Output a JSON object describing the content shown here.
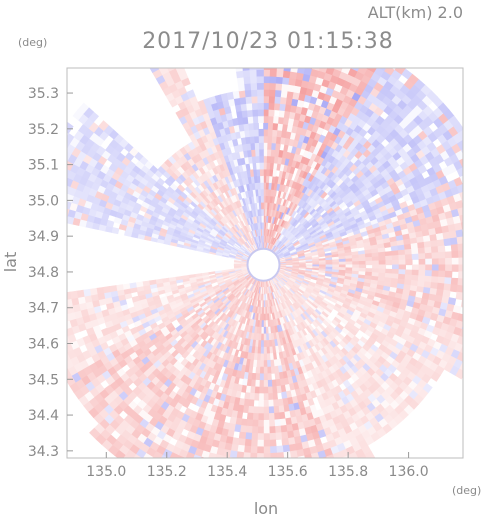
{
  "chart_data": {
    "type": "heatmap",
    "title": "2017/10/23 01:15:38",
    "altitude_label": "ALT(km)  2.0",
    "xlabel": "lon",
    "ylabel": "lat",
    "x_unit": "(deg)",
    "y_unit": "(deg)",
    "xlim": [
      134.87,
      136.18
    ],
    "ylim": [
      34.28,
      35.37
    ],
    "x_ticks": [
      135.0,
      135.2,
      135.4,
      135.6,
      135.8,
      136.0
    ],
    "x_tick_labels": [
      "135.0",
      "135.2",
      "135.4",
      "135.6",
      "135.8",
      "136.0"
    ],
    "y_ticks": [
      34.3,
      34.4,
      34.5,
      34.6,
      34.7,
      34.8,
      34.9,
      35.0,
      35.1,
      35.2,
      35.3
    ],
    "y_tick_labels": [
      "34.3",
      "34.4",
      "34.5",
      "34.6",
      "34.7",
      "34.8",
      "34.9",
      "35.0",
      "35.1",
      "35.2",
      "35.3"
    ],
    "radar_center": {
      "lon": 135.52,
      "lat": 34.82
    },
    "max_range_deg_lon": 0.8,
    "colors": {
      "approaching": "#7878f0",
      "receding": "#f07070",
      "neutral": "#ffffff",
      "axis": "#8a8a8a"
    },
    "sectors": [
      {
        "from_bearing": 0,
        "to_bearing": 30,
        "sign": "receding",
        "intensity": 0.45
      },
      {
        "from_bearing": 30,
        "to_bearing": 70,
        "sign": "approaching",
        "intensity": 0.3
      },
      {
        "from_bearing": 70,
        "to_bearing": 110,
        "sign": "receding",
        "intensity": 0.3
      },
      {
        "from_bearing": 110,
        "to_bearing": 160,
        "sign": "receding",
        "intensity": 0.2
      },
      {
        "from_bearing": 160,
        "to_bearing": 200,
        "sign": "receding",
        "intensity": 0.35
      },
      {
        "from_bearing": 200,
        "to_bearing": 240,
        "sign": "receding",
        "intensity": 0.3
      },
      {
        "from_bearing": 240,
        "to_bearing": 280,
        "sign": "receding",
        "intensity": 0.2
      },
      {
        "from_bearing": 280,
        "to_bearing": 315,
        "sign": "approaching",
        "intensity": 0.25
      },
      {
        "from_bearing": 315,
        "to_bearing": 340,
        "sign": "receding",
        "intensity": 0.25
      },
      {
        "from_bearing": 340,
        "to_bearing": 360,
        "sign": "approaching",
        "intensity": 0.35
      }
    ]
  }
}
